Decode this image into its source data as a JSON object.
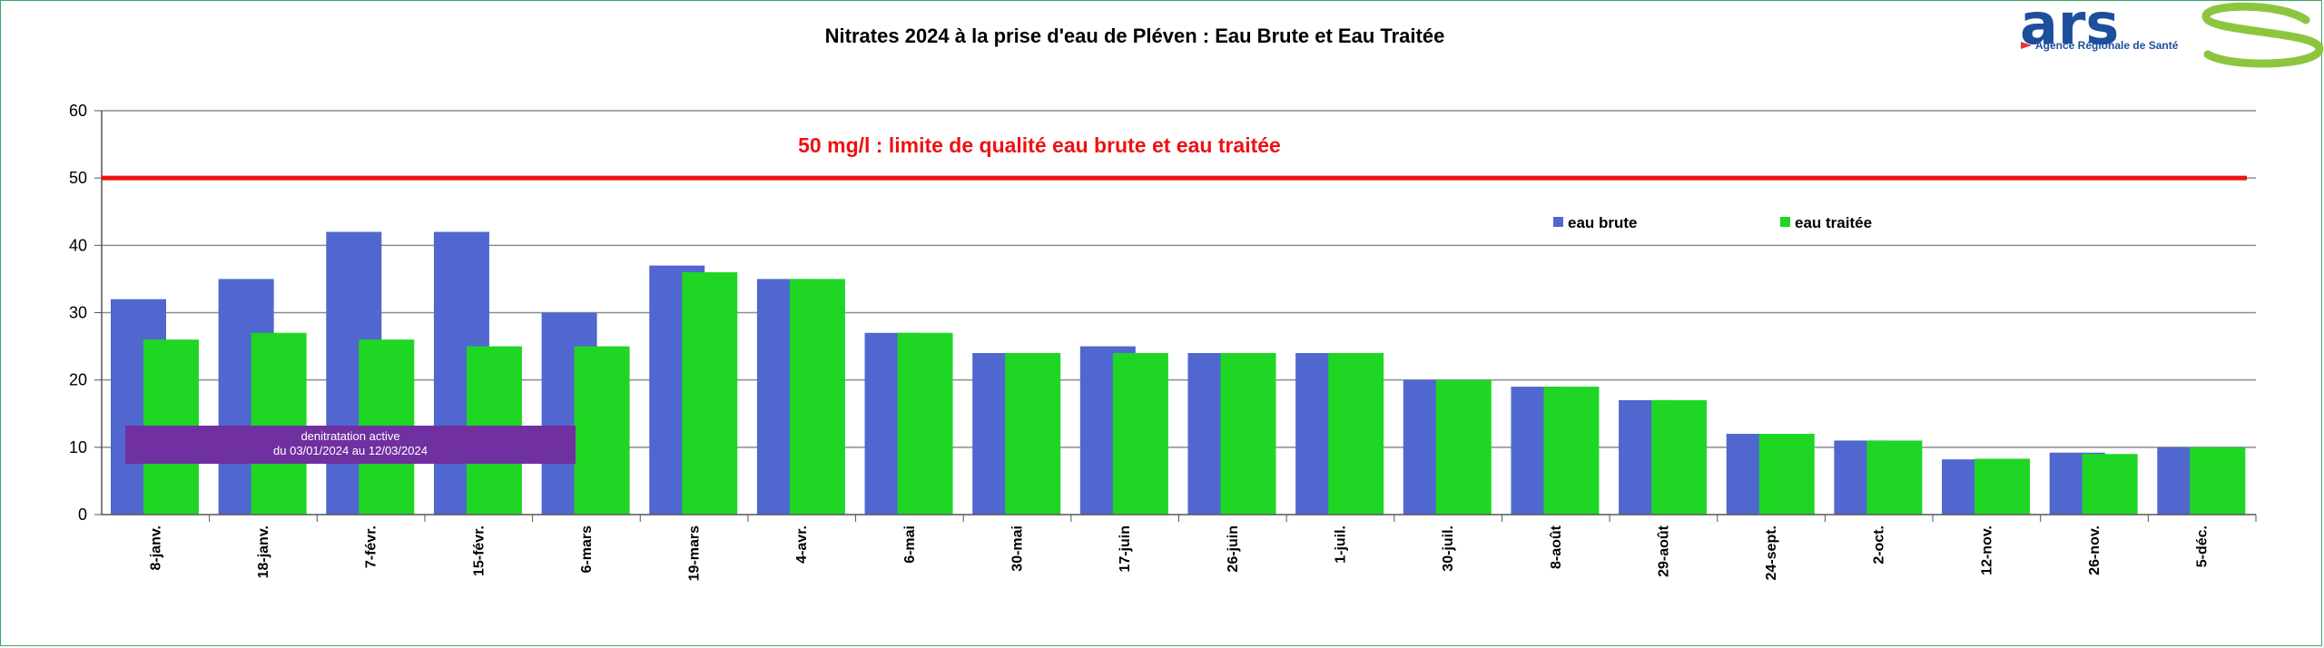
{
  "colors": {
    "eau_brute": "#4f67cf",
    "eau_traitee": "#1fd624",
    "limit": "#ee1111",
    "note_box": "#7030a0",
    "grid": "#8c8c8c",
    "logo_blue": "#1c4f9c",
    "logo_green": "#8cc63f"
  },
  "logo": {
    "text": "Agence Régionale de Santé",
    "letters": "ars"
  },
  "chart_data": {
    "type": "bar",
    "title": "Nitrates 2024 à la prise d'eau de Pléven : Eau Brute et Eau Traitée",
    "xlabel": "",
    "ylabel": "",
    "ylim": [
      0,
      60
    ],
    "yticks": [
      0,
      10,
      20,
      30,
      40,
      50,
      60
    ],
    "grid": true,
    "legend": "top-right",
    "categories": [
      "8-janv.",
      "18-janv.",
      "7-févr.",
      "15-févr.",
      "6-mars",
      "19-mars",
      "4-avr.",
      "6-mai",
      "30-mai",
      "17-juin",
      "26-juin",
      "1-juil.",
      "30-juil.",
      "8-août",
      "29-août",
      "24-sept.",
      "2-oct.",
      "12-nov.",
      "26-nov.",
      "5-déc."
    ],
    "series": [
      {
        "name": "eau brute",
        "values": [
          32,
          35,
          42,
          42,
          30,
          37,
          35,
          27,
          24,
          25,
          24,
          24,
          20,
          19,
          17,
          12,
          11,
          8.2,
          9.2,
          10
        ]
      },
      {
        "name": "eau traitée",
        "values": [
          26,
          27,
          26,
          25,
          25,
          36,
          35,
          27,
          24,
          24,
          24,
          24,
          20,
          19,
          17,
          12,
          11,
          8.3,
          9,
          10
        ]
      }
    ],
    "limit_line": {
      "value": 50,
      "label": "50 mg/l : limite de qualité eau brute et eau traitée"
    },
    "annotation": {
      "line1": "denitratation active",
      "line2": "du 03/01/2024 au 12/03/2024"
    }
  }
}
